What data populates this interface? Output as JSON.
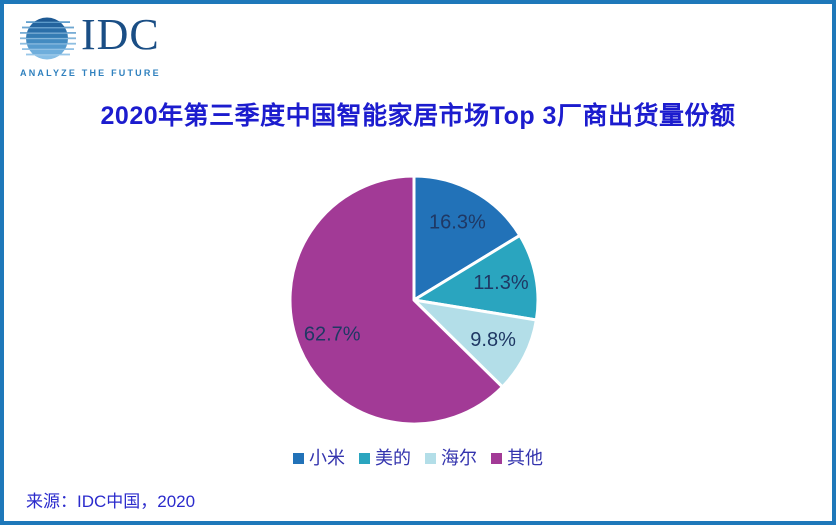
{
  "logo": {
    "text": "IDC",
    "tagline": "ANALYZE THE FUTURE"
  },
  "chart_data": {
    "type": "pie",
    "title": "2020年第三季度中国智能家居市场Top 3厂商出货量份额",
    "labels": [
      "小米",
      "美的",
      "海尔",
      "其他"
    ],
    "values": [
      16.3,
      11.3,
      9.8,
      62.7
    ],
    "data_labels": [
      "16.3%",
      "11.3%",
      "9.8%",
      "62.7%"
    ],
    "colors": [
      "#2272B8",
      "#2AA5BF",
      "#B3DEE8",
      "#A23A96"
    ],
    "unit": "percent",
    "start_angle": "12 o'clock",
    "direction": "clockwise",
    "legend_position": "bottom",
    "slice_separator_color": "#FFFFFF"
  },
  "footer": {
    "source": "来源：IDC中国，2020"
  },
  "colors": {
    "border": "#1E78BA",
    "title_text": "#1C1CCE",
    "data_label_text": "#1F3864",
    "legend_text": "#3434AE",
    "source_text": "#2B2BCC",
    "logo_text": "#1A4E85",
    "logo_tagline": "#2F80BE"
  }
}
